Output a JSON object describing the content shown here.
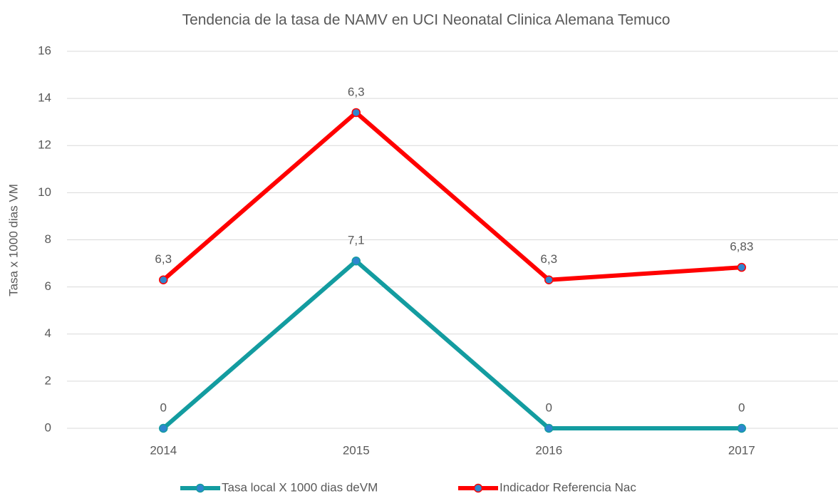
{
  "chart_data": {
    "type": "line",
    "stacked": true,
    "title": "Tendencia de la tasa de NAMV en UCI Neonatal Clinica Alemana Temuco",
    "y_label": "Tasa x 1000 dias VM",
    "categories": [
      "2014",
      "2015",
      "2016",
      "2017"
    ],
    "series": [
      {
        "name": "Tasa local X 1000 dias deVM",
        "color": "#139ca0",
        "values": [
          0,
          7.1,
          0,
          0
        ],
        "value_labels": [
          "0",
          "7,1",
          "0",
          "0"
        ]
      },
      {
        "name": "Indicador Referencia Nac",
        "color": "#ff0000",
        "values": [
          6.3,
          6.3,
          6.3,
          6.83
        ],
        "value_labels": [
          "6,3",
          "6,3",
          "6,3",
          "6,83"
        ]
      }
    ],
    "marker_color": "#2e86cf",
    "ylim": [
      0,
      16
    ],
    "yticks": [
      0,
      2,
      4,
      6,
      8,
      10,
      12,
      14,
      16
    ],
    "grid": true,
    "legend": "bottom"
  }
}
